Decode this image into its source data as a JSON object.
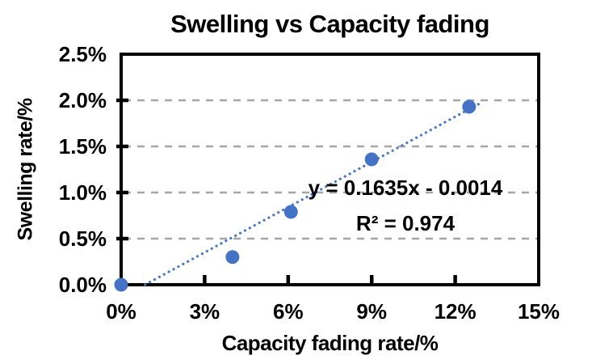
{
  "chart_data": {
    "type": "scatter",
    "title": "Swelling vs Capacity fading",
    "xlabel": "Capacity fading rate/%",
    "ylabel": "Swelling rate/%",
    "x": [
      0,
      4,
      6.1,
      9,
      12.5
    ],
    "y": [
      0.0,
      0.3,
      0.79,
      1.36,
      1.93
    ],
    "xlim": [
      0,
      15
    ],
    "ylim": [
      0,
      2.5
    ],
    "xtick_values": [
      0,
      3,
      6,
      9,
      12,
      15
    ],
    "xtick_labels": [
      "0%",
      "3%",
      "6%",
      "9%",
      "12%",
      "15%"
    ],
    "ytick_values": [
      0,
      0.5,
      1,
      1.5,
      2,
      2.5
    ],
    "ytick_labels": [
      "0.0%",
      "0.5%",
      "1.0%",
      "1.5%",
      "2.0%",
      "2.5%"
    ],
    "grid": "horizontal-dashed",
    "legend": "none",
    "trendline": {
      "label": "y = 0.1635x - 0.0014",
      "r_squared_label": "R² = 0.974",
      "slope": 0.1635,
      "intercept": -0.0014,
      "style": "dotted",
      "x_start": 0.86,
      "x_end": 13.0
    },
    "colors": {
      "marker": "#4472c4",
      "trendline": "#4878c8",
      "gridline": "#a6a6a6",
      "axis": "#000000",
      "text": "#000000",
      "background": "#ffffff"
    }
  }
}
